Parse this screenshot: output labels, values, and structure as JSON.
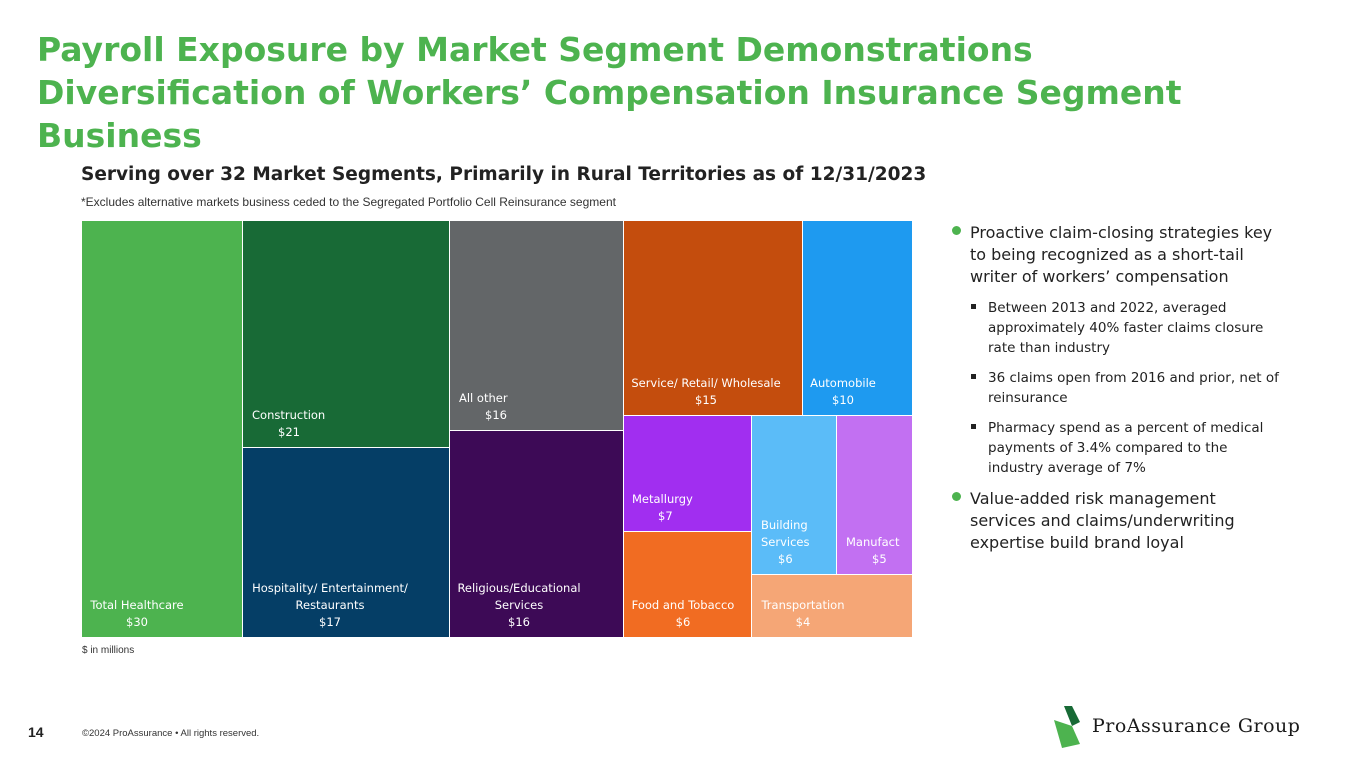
{
  "page": {
    "title": "Payroll Exposure by Market Segment Demonstrations Diversification of Workers’ Compensation Insurance Segment Business",
    "subtitle": "Serving over 32 Market Segments, Primarily in Rural Territories as of 12/31/2023",
    "note": "*Excludes alternative markets business ceded to the Segregated Portfolio Cell Reinsurance segment",
    "unit_note": "$ in millions",
    "page_number": "14",
    "copyright": "©2024 ProAssurance  •  All rights reserved.",
    "logo_text": "ProAssurance Group"
  },
  "bullets": [
    {
      "text": "Proactive claim-closing strategies key to being recognized as a short-tail writer of workers’ compensation",
      "sub": [
        "Between 2013 and 2022, averaged approximately 40% faster claims closure rate than industry",
        "36 claims open from 2016 and prior, net of reinsurance",
        "Pharmacy spend as a percent of medical payments of 3.4% compared to the industry average of 7%"
      ]
    },
    {
      "text": "Value-added risk management services and claims/underwriting expertise build brand loyal",
      "sub": []
    }
  ],
  "chart_data": {
    "type": "treemap",
    "unit": "$ in millions",
    "items": [
      {
        "label": "Total Healthcare",
        "value": 30,
        "value_label": "$30",
        "color": "#4db34f"
      },
      {
        "label": "Construction",
        "value": 21,
        "value_label": "$21",
        "color": "#186a36"
      },
      {
        "label": "Hospitality/ Entertainment/ Restaurants",
        "value": 17,
        "value_label": "$17",
        "color": "#053e66"
      },
      {
        "label": "All other",
        "value": 16,
        "value_label": "$16",
        "color": "#636668"
      },
      {
        "label": "Religious/Educational Services",
        "value": 16,
        "value_label": "$16",
        "color": "#3d0a56"
      },
      {
        "label": "Service/ Retail/ Wholesale",
        "value": 15,
        "value_label": "$15",
        "color": "#c44d0d"
      },
      {
        "label": "Automobile",
        "value": 10,
        "value_label": "$10",
        "color": "#1e9af0"
      },
      {
        "label": "Metallurgy",
        "value": 7,
        "value_label": "$7",
        "color": "#a12ef0"
      },
      {
        "label": "Food and Tobacco",
        "value": 6,
        "value_label": "$6",
        "color": "#f16c22"
      },
      {
        "label": "Building Services",
        "value": 6,
        "value_label": "$6",
        "color": "#5bbcf8"
      },
      {
        "label": "Manufact",
        "value": 5,
        "value_label": "$5",
        "color": "#c270f2"
      },
      {
        "label": "Transportation",
        "value": 4,
        "value_label": "$4",
        "color": "#f5a676"
      }
    ]
  }
}
